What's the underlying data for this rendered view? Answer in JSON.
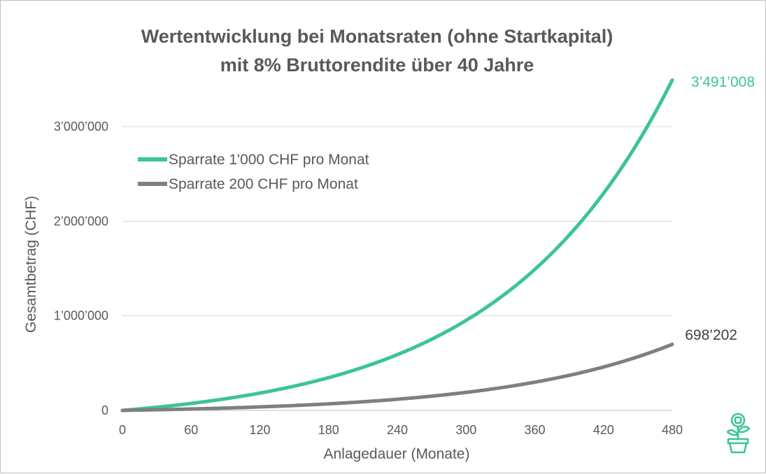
{
  "chart_data": {
    "type": "line",
    "title": "Wertentwicklung bei Monatsraten (ohne Startkapital)",
    "subtitle": "mit 8% Bruttorendite über 40 Jahre",
    "xlabel": "Anlagedauer (Monate)",
    "ylabel": "Gesamtbetrag (CHF)",
    "xlim": [
      0,
      480
    ],
    "ylim": [
      0,
      3500000
    ],
    "x_ticks": [
      0,
      60,
      120,
      180,
      240,
      300,
      360,
      420,
      480
    ],
    "x_tick_labels": [
      "0",
      "60",
      "120",
      "180",
      "240",
      "300",
      "360",
      "420",
      "480"
    ],
    "y_ticks": [
      0,
      1000000,
      2000000,
      3000000
    ],
    "y_tick_labels": [
      "0",
      "1’000’000",
      "2’000’000",
      "3’000’000"
    ],
    "grid": true,
    "legend_position": "top-left",
    "x": [
      0,
      60,
      120,
      180,
      240,
      300,
      360,
      420,
      480
    ],
    "series": [
      {
        "name": "Sparrate 1'000 CHF pro Monat",
        "color": "#3cc497",
        "values": [
          0,
          74000,
          184000,
          346000,
          589000,
          950000,
          1490000,
          2290000,
          3491008
        ],
        "end_label": "3’491’008"
      },
      {
        "name": "Sparrate 200 CHF pro Monat",
        "color": "#7f7f7f",
        "values": [
          0,
          14800,
          36800,
          69200,
          117800,
          190000,
          298000,
          458000,
          698202
        ],
        "end_label": "698’202"
      }
    ]
  },
  "icons": {
    "logo": "plant-pot-icon"
  }
}
